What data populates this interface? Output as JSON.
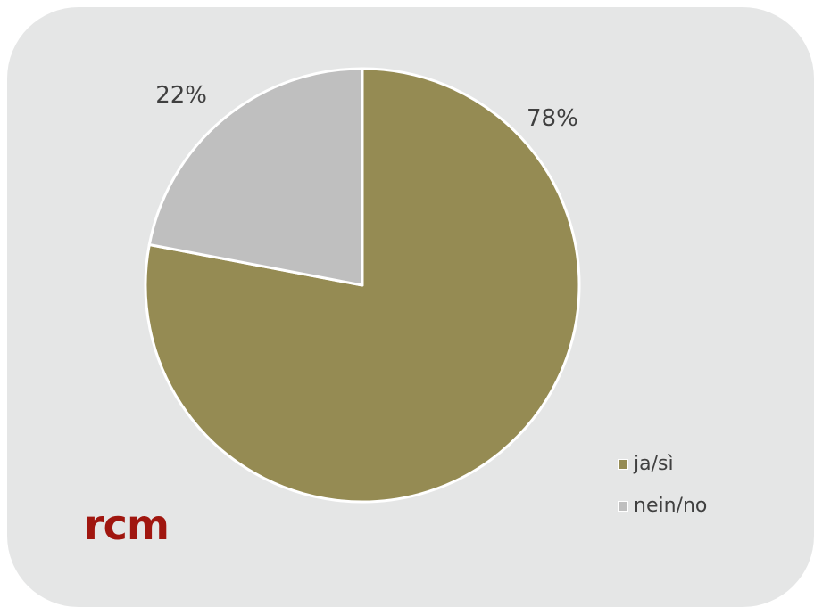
{
  "chart_data": {
    "type": "pie",
    "slices": [
      {
        "label": "ja/sì",
        "value": 78,
        "display": "78%",
        "color": "#958b53"
      },
      {
        "label": "nein/no",
        "value": 22,
        "display": "22%",
        "color": "#bfbfbf"
      }
    ],
    "start_angle_deg": 0,
    "direction": "clockwise",
    "legend_position": "bottom-right"
  },
  "logo": {
    "text": "rcm",
    "color": "#a0160f"
  }
}
